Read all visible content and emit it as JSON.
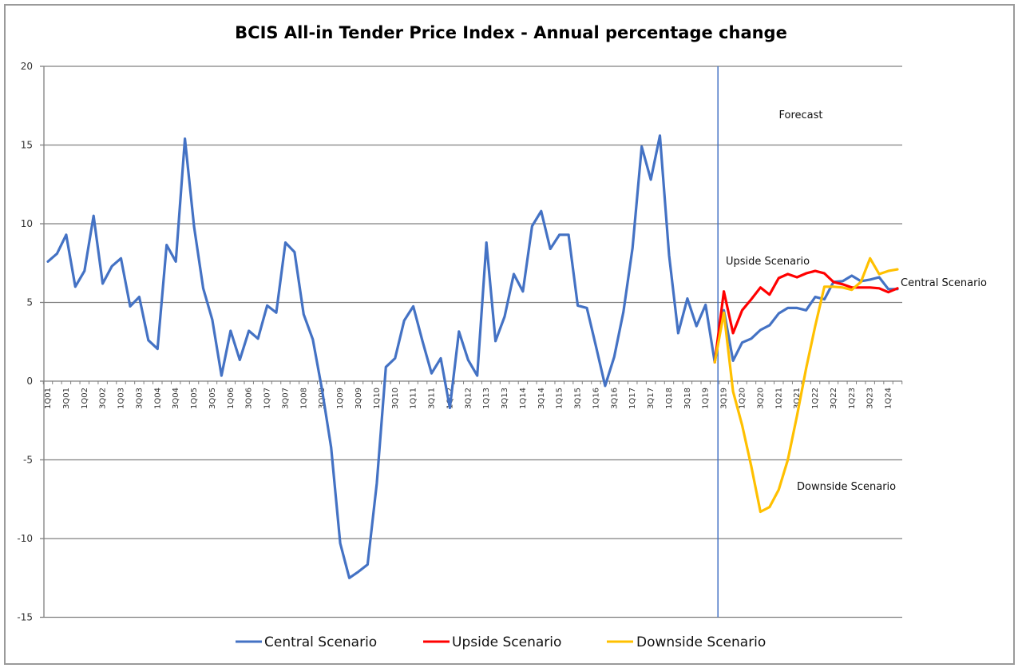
{
  "chart_data": {
    "type": "line",
    "title": "BCIS All-in Tender Price Index - Annual percentage change",
    "xlabel": "",
    "ylabel": "",
    "ylim": [
      -15,
      20
    ],
    "yticks": [
      20,
      15,
      10,
      5,
      0,
      -5,
      -10,
      -15
    ],
    "ytick_labels": [
      "20",
      "15",
      "10",
      "5",
      "0",
      "-5",
      "-10",
      "-15"
    ],
    "grid": true,
    "legend_position": "bottom",
    "x": [
      "1Q01",
      "2Q01",
      "3Q01",
      "4Q01",
      "1Q02",
      "2Q02",
      "3Q02",
      "4Q02",
      "1Q03",
      "2Q03",
      "3Q03",
      "4Q03",
      "1Q04",
      "2Q04",
      "3Q04",
      "4Q04",
      "1Q05",
      "2Q05",
      "3Q05",
      "4Q05",
      "1Q06",
      "2Q06",
      "3Q06",
      "4Q06",
      "1Q07",
      "2Q07",
      "3Q07",
      "4Q07",
      "1Q08",
      "2Q08",
      "3Q08",
      "4Q08",
      "1Q09",
      "2Q09",
      "3Q09",
      "4Q09",
      "1Q10",
      "2Q10",
      "3Q10",
      "4Q10",
      "1Q11",
      "2Q11",
      "3Q11",
      "4Q11",
      "1Q12",
      "2Q12",
      "3Q12",
      "4Q12",
      "1Q13",
      "2Q13",
      "3Q13",
      "4Q13",
      "1Q14",
      "2Q14",
      "3Q14",
      "4Q14",
      "1Q15",
      "2Q15",
      "3Q15",
      "4Q15",
      "1Q16",
      "2Q16",
      "3Q16",
      "4Q16",
      "1Q17",
      "2Q17",
      "3Q17",
      "4Q17",
      "1Q18",
      "2Q18",
      "3Q18",
      "4Q18",
      "1Q19",
      "2Q19",
      "3Q19",
      "4Q19",
      "1Q20",
      "2Q20",
      "3Q20",
      "4Q20",
      "1Q21",
      "2Q21",
      "3Q21",
      "4Q21",
      "1Q22",
      "2Q22",
      "3Q22",
      "4Q22",
      "1Q23",
      "2Q23",
      "3Q23",
      "4Q23",
      "1Q24",
      "2Q24"
    ],
    "x_tick_labels": [
      "1Q01",
      "3Q01",
      "1Q02",
      "3Q02",
      "1Q03",
      "3Q03",
      "1Q04",
      "3Q04",
      "1Q05",
      "3Q05",
      "1Q06",
      "3Q06",
      "1Q07",
      "3Q07",
      "1Q08",
      "3Q08",
      "1Q09",
      "3Q09",
      "1Q10",
      "3Q10",
      "1Q11",
      "3Q11",
      "1Q12",
      "3Q12",
      "1Q13",
      "3Q13",
      "1Q14",
      "3Q14",
      "1Q15",
      "3Q15",
      "1Q16",
      "3Q16",
      "1Q17",
      "3Q17",
      "1Q18",
      "3Q18",
      "1Q19",
      "3Q19",
      "1Q20",
      "3Q20",
      "1Q21",
      "3Q21",
      "1Q22",
      "3Q22",
      "1Q23",
      "3Q23",
      "1Q24"
    ],
    "forecast_start": "2Q19",
    "series": [
      {
        "name": "Central Scenario",
        "color": "#4472C4",
        "start": "1Q01",
        "values": [
          7.6,
          8.1,
          9.3,
          6.0,
          7.0,
          10.5,
          6.2,
          7.3,
          7.8,
          4.75,
          5.35,
          2.6,
          2.05,
          8.65,
          7.6,
          15.4,
          9.8,
          5.9,
          3.9,
          0.35,
          3.2,
          1.35,
          3.2,
          2.7,
          4.8,
          4.35,
          8.8,
          8.2,
          4.25,
          2.65,
          -0.5,
          -4.2,
          -10.3,
          -12.5,
          -12.1,
          -11.65,
          -6.5,
          0.9,
          1.45,
          3.85,
          4.75,
          2.55,
          0.5,
          1.45,
          -1.7,
          3.15,
          1.35,
          0.35,
          8.8,
          2.55,
          4.1,
          6.8,
          5.7,
          9.85,
          10.8,
          8.4,
          9.3,
          9.3,
          4.8,
          4.65,
          2.2,
          -0.3,
          1.55,
          4.4,
          8.45,
          14.9,
          12.8,
          15.6,
          8.0,
          3.05,
          5.25,
          3.5,
          4.85,
          1.2,
          4.5,
          1.3,
          2.45,
          2.7,
          3.25,
          3.55,
          4.3,
          4.65,
          4.65,
          4.5,
          5.35,
          5.2,
          6.3,
          6.35,
          6.7,
          6.35,
          6.45,
          6.6,
          5.85,
          5.85
        ]
      },
      {
        "name": "Upside Scenario",
        "color": "#FF0000",
        "start": "2Q19",
        "values": [
          1.2,
          5.7,
          3.05,
          4.5,
          5.2,
          5.95,
          5.5,
          6.55,
          6.8,
          6.6,
          6.85,
          7.0,
          6.85,
          6.3,
          6.15,
          5.95,
          5.95,
          5.95,
          5.9,
          5.65,
          5.9
        ]
      },
      {
        "name": "Downside Scenario",
        "color": "#FFC000",
        "start": "2Q19",
        "values": [
          1.2,
          4.35,
          -0.65,
          -2.8,
          -5.4,
          -8.3,
          -8.0,
          -6.9,
          -5.0,
          -2.2,
          0.8,
          3.5,
          6.0,
          6.0,
          5.95,
          5.8,
          6.3,
          7.8,
          6.8,
          7.0,
          7.1
        ]
      }
    ],
    "annotations": {
      "forecast": "Forecast",
      "upside": "Upside Scenario",
      "central": "Central Scenario",
      "downside": "Downside Scenario"
    },
    "gridline_color": "#808080",
    "forecast_line_color": "#4472C4"
  }
}
